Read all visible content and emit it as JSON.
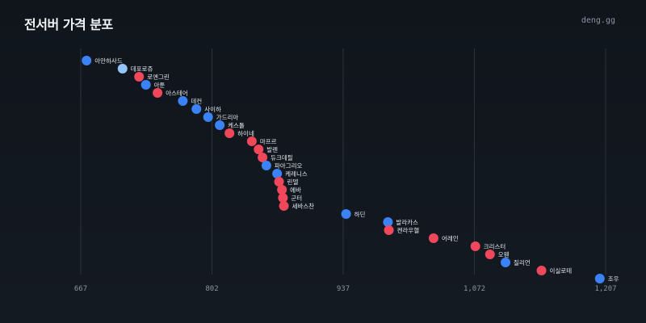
{
  "header": {
    "title": "전서버 가격 분포",
    "brand": "deng.gg"
  },
  "colors": {
    "blue": "#3b82f6",
    "red": "#f0475a",
    "light_blue": "#93c5fd",
    "grid": "#2b333e",
    "tick_text": "#8a94a3"
  },
  "chart_data": {
    "type": "scatter",
    "title": "전서버 가격 분포",
    "xlim": [
      667,
      1207
    ],
    "xticks": [
      667,
      802,
      937,
      1072,
      1207
    ],
    "xtick_labels": [
      "667",
      "802",
      "937",
      "1,072",
      "1,207"
    ],
    "grid": true,
    "points": [
      {
        "name": "아만하사드",
        "value": 673,
        "color": "blue"
      },
      {
        "name": "데포로쥬",
        "value": 710,
        "color": "light_blue"
      },
      {
        "name": "로엔그린",
        "value": 727,
        "color": "red"
      },
      {
        "name": "아툰",
        "value": 734,
        "color": "blue"
      },
      {
        "name": "아스테어",
        "value": 746,
        "color": "red"
      },
      {
        "name": "데컨",
        "value": 772,
        "color": "blue"
      },
      {
        "name": "사이하",
        "value": 786,
        "color": "blue"
      },
      {
        "name": "가드리아",
        "value": 798,
        "color": "blue"
      },
      {
        "name": "케스톨",
        "value": 810,
        "color": "blue"
      },
      {
        "name": "하이네",
        "value": 820,
        "color": "red"
      },
      {
        "name": "마프르",
        "value": 843,
        "color": "red"
      },
      {
        "name": "발렌",
        "value": 850,
        "color": "red"
      },
      {
        "name": "듀크데필",
        "value": 854,
        "color": "red"
      },
      {
        "name": "파아그리오",
        "value": 858,
        "color": "blue"
      },
      {
        "name": "케레니스",
        "value": 869,
        "color": "blue"
      },
      {
        "name": "린델",
        "value": 871,
        "color": "red"
      },
      {
        "name": "에바",
        "value": 874,
        "color": "red"
      },
      {
        "name": "군터",
        "value": 875,
        "color": "red"
      },
      {
        "name": "세바스찬",
        "value": 876,
        "color": "red"
      },
      {
        "name": "하딘",
        "value": 940,
        "color": "blue"
      },
      {
        "name": "발라카스",
        "value": 983,
        "color": "blue"
      },
      {
        "name": "켄라우헬",
        "value": 984,
        "color": "red"
      },
      {
        "name": "어레인",
        "value": 1030,
        "color": "red"
      },
      {
        "name": "크리스터",
        "value": 1073,
        "color": "red"
      },
      {
        "name": "오웬",
        "value": 1088,
        "color": "red"
      },
      {
        "name": "질리언",
        "value": 1104,
        "color": "blue"
      },
      {
        "name": "이실로테",
        "value": 1141,
        "color": "red"
      },
      {
        "name": "조우",
        "value": 1201,
        "color": "blue"
      }
    ]
  }
}
